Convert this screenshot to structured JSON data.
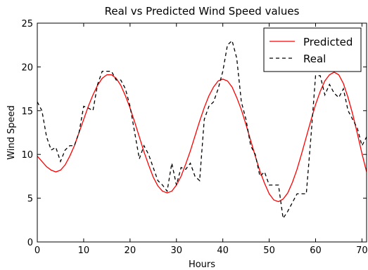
{
  "chart_data": {
    "type": "line",
    "title": "Real vs Predicted Wind Speed values",
    "x_label": "Hours",
    "y_label": "Wind Speed",
    "x": [
      0,
      1,
      2,
      3,
      4,
      5,
      6,
      7,
      8,
      9,
      10,
      11,
      12,
      13,
      14,
      15,
      16,
      17,
      18,
      19,
      20,
      21,
      22,
      23,
      24,
      25,
      26,
      27,
      28,
      29,
      30,
      31,
      32,
      33,
      34,
      35,
      36,
      37,
      38,
      39,
      40,
      41,
      42,
      43,
      44,
      45,
      46,
      47,
      48,
      49,
      50,
      51,
      52,
      53,
      54,
      55,
      56,
      57,
      58,
      59,
      60,
      61,
      62,
      63,
      64,
      65,
      66,
      67,
      68,
      69,
      70,
      71
    ],
    "series": [
      {
        "name": "Predicted",
        "color": "#ff0000",
        "dash": "solid",
        "values": [
          9.8,
          9.2,
          8.6,
          8.2,
          8.0,
          8.2,
          8.8,
          9.8,
          11.0,
          12.5,
          14.0,
          15.5,
          16.8,
          17.9,
          18.7,
          19.1,
          19.1,
          18.7,
          17.9,
          16.7,
          15.3,
          13.7,
          12.0,
          10.3,
          8.8,
          7.4,
          6.4,
          5.8,
          5.6,
          5.8,
          6.5,
          7.5,
          8.9,
          10.4,
          12.1,
          13.8,
          15.35,
          16.7,
          17.7,
          18.4,
          18.6,
          18.4,
          17.7,
          16.5,
          15.1,
          13.4,
          11.6,
          9.8,
          8.1,
          6.7,
          5.5,
          4.8,
          4.6,
          4.9,
          5.6,
          6.8,
          8.3,
          10.1,
          12.0,
          13.9,
          15.7,
          17.2,
          18.4,
          19.1,
          19.4,
          19.1,
          18.1,
          16.5,
          14.6,
          12.4,
          10.1,
          8.0
        ]
      },
      {
        "name": "Real",
        "color": "#000000",
        "dash": "dashed",
        "values": [
          16,
          15,
          12,
          10.5,
          10.8,
          9.2,
          10.5,
          11,
          11,
          12.5,
          15.5,
          15.3,
          15,
          18,
          19.5,
          19.5,
          19.5,
          18.5,
          18.5,
          17.5,
          15.5,
          12.5,
          9.5,
          11,
          10,
          8.5,
          7,
          6.5,
          5.8,
          9,
          6.5,
          8.5,
          8.3,
          9,
          7.5,
          7,
          14,
          15.5,
          16,
          17.5,
          19.5,
          22.5,
          23,
          21,
          16,
          14,
          11,
          10,
          7.5,
          8,
          6.5,
          6.5,
          6.5,
          2.7,
          3.5,
          4.5,
          5.5,
          5.5,
          5.5,
          12,
          19,
          19,
          16.8,
          18,
          17,
          16.5,
          17.5,
          15,
          14,
          13,
          11,
          12
        ]
      }
    ],
    "xlim": [
      0,
      71
    ],
    "ylim": [
      0,
      25
    ],
    "xticks": [
      0,
      10,
      20,
      30,
      40,
      50,
      60,
      70
    ],
    "yticks": [
      0,
      5,
      10,
      15,
      20,
      25
    ],
    "legend": "upper right"
  }
}
